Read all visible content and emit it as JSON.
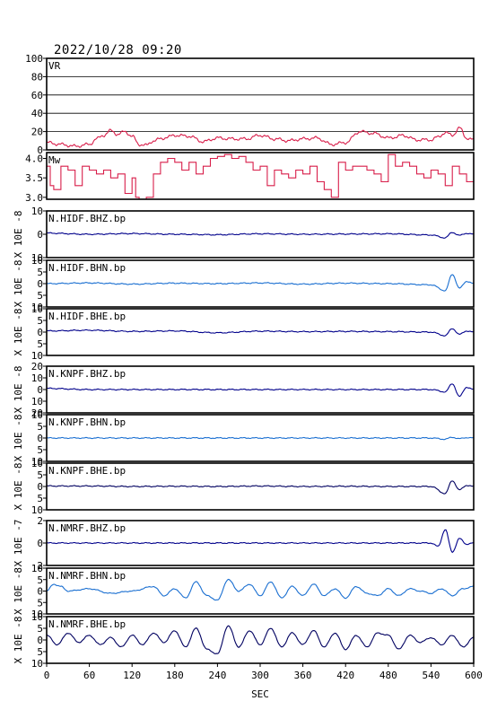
{
  "header": {
    "timestamp": "2022/10/28 09:20"
  },
  "colors": {
    "vr": "#d81e4a",
    "mw": "#d81e4a",
    "dark_blue": "#00008b",
    "mid_blue": "#1a6fd1",
    "navy": "#000060",
    "grid": "#000000"
  },
  "chart_data": {
    "type": "line",
    "xlabel": "SEC",
    "xlim": [
      0,
      600
    ],
    "xticks": [
      0,
      60,
      120,
      180,
      240,
      300,
      360,
      420,
      480,
      540,
      600
    ],
    "panels": [
      {
        "id": "vr",
        "label": "VR",
        "ylabel": "",
        "ylim": [
          0,
          100
        ],
        "yticks": [
          0,
          20,
          40,
          60,
          80,
          100
        ],
        "ytick_labels": [
          "0",
          "20",
          "40",
          "60",
          "80",
          "100"
        ],
        "grid": true,
        "color": "vr",
        "style": "line",
        "x": [
          0,
          20,
          40,
          60,
          70,
          80,
          90,
          100,
          110,
          120,
          130,
          140,
          150,
          160,
          170,
          180,
          200,
          220,
          240,
          260,
          280,
          300,
          320,
          340,
          360,
          380,
          400,
          420,
          440,
          460,
          480,
          490,
          500,
          520,
          540,
          550,
          560,
          570,
          580,
          590,
          600
        ],
        "values": [
          8,
          6,
          4,
          6,
          12,
          16,
          21,
          17,
          20,
          15,
          6,
          5,
          10,
          12,
          14,
          16,
          15,
          9,
          13,
          12,
          12,
          16,
          12,
          10,
          12,
          13,
          6,
          8,
          20,
          18,
          13,
          14,
          16,
          11,
          11,
          14,
          19,
          16,
          24,
          13,
          11
        ]
      },
      {
        "id": "mw",
        "label": "Mw",
        "ylabel": "",
        "ylim": [
          2.95,
          4.15
        ],
        "yticks": [
          3.0,
          3.5,
          4.0
        ],
        "ytick_labels": [
          "3.0",
          "3.5",
          "4.0"
        ],
        "grid": false,
        "color": "mw",
        "style": "step",
        "x": [
          0,
          5,
          10,
          20,
          30,
          40,
          50,
          60,
          70,
          80,
          90,
          100,
          110,
          120,
          125,
          130,
          140,
          150,
          160,
          170,
          180,
          190,
          200,
          210,
          220,
          230,
          240,
          250,
          260,
          270,
          280,
          290,
          300,
          310,
          320,
          330,
          340,
          350,
          360,
          370,
          380,
          390,
          400,
          410,
          420,
          430,
          440,
          450,
          460,
          470,
          480,
          490,
          500,
          510,
          520,
          530,
          540,
          550,
          560,
          570,
          580,
          590,
          600
        ],
        "values": [
          3.8,
          3.3,
          3.2,
          3.8,
          3.7,
          3.3,
          3.8,
          3.7,
          3.6,
          3.7,
          3.5,
          3.6,
          3.1,
          3.5,
          3.0,
          2.95,
          3.0,
          3.6,
          3.9,
          4.0,
          3.9,
          3.7,
          3.9,
          3.6,
          3.8,
          4.0,
          4.05,
          4.1,
          4.0,
          4.05,
          3.9,
          3.7,
          3.8,
          3.3,
          3.7,
          3.6,
          3.5,
          3.7,
          3.6,
          3.8,
          3.4,
          3.2,
          3.0,
          3.9,
          3.7,
          3.8,
          3.8,
          3.7,
          3.6,
          3.4,
          4.1,
          3.8,
          3.9,
          3.8,
          3.6,
          3.5,
          3.7,
          3.6,
          3.3,
          3.8,
          3.6,
          3.4,
          4.0
        ]
      },
      {
        "id": "hidf_bhz",
        "label": "N.HIDF.BHZ.bp",
        "ylabel": "X 10E -8",
        "ylim": [
          -10,
          10
        ],
        "yticks": [
          -10,
          0,
          10
        ],
        "ytick_labels": [
          "10",
          "0",
          "10"
        ],
        "grid": false,
        "color": "dark_blue",
        "style": "wave",
        "x": [
          0,
          60,
          120,
          180,
          240,
          300,
          360,
          420,
          480,
          540,
          560,
          570,
          580,
          590,
          600
        ],
        "values": [
          0.5,
          0,
          0.3,
          0,
          -0.2,
          0.2,
          0,
          0.1,
          0.2,
          -0.3,
          -1.5,
          0.8,
          -0.5,
          0.4,
          0
        ]
      },
      {
        "id": "hidf_bhn",
        "label": "N.HIDF.BHN.bp",
        "ylabel": "X 10E -8",
        "ylim": [
          -10,
          10
        ],
        "yticks": [
          -10,
          -5,
          0,
          5,
          10
        ],
        "ytick_labels": [
          "10",
          "5",
          "0",
          "5",
          "10"
        ],
        "grid": false,
        "color": "mid_blue",
        "style": "wave",
        "x": [
          0,
          60,
          120,
          180,
          240,
          300,
          360,
          420,
          480,
          540,
          560,
          570,
          580,
          590,
          600
        ],
        "values": [
          0,
          0.3,
          -0.2,
          0.2,
          0,
          0.3,
          -0.2,
          0.2,
          0,
          -0.5,
          -3,
          4,
          -2,
          1,
          0
        ]
      },
      {
        "id": "hidf_bhe",
        "label": "N.HIDF.BHE.bp",
        "ylabel": "X 10E -8",
        "ylim": [
          -10,
          10
        ],
        "yticks": [
          -10,
          -5,
          0,
          5,
          10
        ],
        "ytick_labels": [
          "10",
          "5",
          "0",
          "5",
          "10"
        ],
        "grid": false,
        "color": "dark_blue",
        "style": "wave",
        "x": [
          0,
          60,
          120,
          180,
          240,
          300,
          360,
          420,
          480,
          540,
          560,
          570,
          580,
          590,
          600
        ],
        "values": [
          0.5,
          0.8,
          0.3,
          0.5,
          -0.3,
          0.4,
          0.2,
          0.3,
          0.2,
          0,
          -1.5,
          1.5,
          -1,
          0.5,
          0
        ]
      },
      {
        "id": "knpf_bhz",
        "label": "N.KNPF.BHZ.bp",
        "ylabel": "X 10E -8",
        "ylim": [
          -20,
          20
        ],
        "yticks": [
          -20,
          -10,
          0,
          10,
          20
        ],
        "ytick_labels": [
          "20",
          "10",
          "0",
          "10",
          "20"
        ],
        "grid": false,
        "color": "dark_blue",
        "style": "wave",
        "x": [
          0,
          60,
          120,
          180,
          240,
          300,
          360,
          420,
          480,
          540,
          560,
          570,
          580,
          590,
          600
        ],
        "values": [
          1,
          0,
          0,
          0,
          0,
          0,
          0,
          0,
          0,
          0,
          -2,
          5,
          -6,
          2,
          0
        ]
      },
      {
        "id": "knpf_bhn",
        "label": "N.KNPF.BHN.bp",
        "ylabel": "X 10E -8",
        "ylim": [
          -10,
          10
        ],
        "yticks": [
          -10,
          -5,
          0,
          5,
          10
        ],
        "ytick_labels": [
          "10",
          "5",
          "0",
          "5",
          "10"
        ],
        "grid": false,
        "color": "mid_blue",
        "style": "wave",
        "x": [
          0,
          60,
          120,
          180,
          240,
          300,
          360,
          420,
          480,
          540,
          560,
          570,
          580,
          590,
          600
        ],
        "values": [
          0,
          0,
          0,
          0,
          0,
          0,
          0,
          0,
          0,
          0,
          -0.5,
          0.3,
          -0.3,
          0.2,
          0
        ]
      },
      {
        "id": "knpf_bhe",
        "label": "N.KNPF.BHE.bp",
        "ylabel": "X 10E -8",
        "ylim": [
          -10,
          10
        ],
        "yticks": [
          -10,
          -5,
          0,
          5,
          10
        ],
        "ytick_labels": [
          "10",
          "5",
          "0",
          "5",
          "10"
        ],
        "grid": false,
        "color": "navy",
        "style": "wave",
        "x": [
          0,
          60,
          120,
          180,
          240,
          300,
          360,
          420,
          480,
          540,
          560,
          570,
          580,
          590,
          600
        ],
        "values": [
          0.2,
          0.2,
          0,
          0.1,
          0,
          0.2,
          0,
          0.1,
          0,
          0,
          -3,
          2.5,
          -1.5,
          0.5,
          0
        ]
      },
      {
        "id": "nmrf_bhz",
        "label": "N.NMRF.BHZ.bp",
        "ylabel": "X 10E -7",
        "ylim": [
          -2,
          2
        ],
        "yticks": [
          -2,
          0,
          2
        ],
        "ytick_labels": [
          "2",
          "0",
          "2"
        ],
        "grid": false,
        "color": "dark_blue",
        "style": "wave",
        "x": [
          0,
          60,
          120,
          180,
          240,
          300,
          360,
          420,
          480,
          540,
          550,
          560,
          570,
          580,
          590,
          600
        ],
        "values": [
          0,
          0,
          0,
          0,
          0,
          0,
          0,
          0,
          0,
          0,
          -0.3,
          1.2,
          -0.8,
          0.4,
          -0.1,
          0
        ]
      },
      {
        "id": "nmrf_bhn",
        "label": "N.NMRF.BHN.bp",
        "ylabel": "X 10E -8",
        "ylim": [
          -10,
          10
        ],
        "yticks": [
          -10,
          -5,
          0,
          5,
          10
        ],
        "ytick_labels": [
          "10",
          "5",
          "0",
          "5",
          "10"
        ],
        "grid": false,
        "color": "mid_blue",
        "style": "osc",
        "x": [
          0,
          10,
          20,
          30,
          60,
          90,
          120,
          150,
          165,
          180,
          195,
          210,
          225,
          240,
          255,
          270,
          285,
          300,
          315,
          330,
          345,
          360,
          375,
          390,
          405,
          420,
          435,
          450,
          465,
          480,
          495,
          510,
          525,
          540,
          555,
          570,
          585,
          600
        ],
        "values": [
          0,
          3,
          2,
          0,
          1,
          -1,
          0,
          2,
          -2,
          1,
          -3,
          4,
          -2,
          -4,
          5,
          0,
          3,
          -2,
          4,
          -3,
          2,
          -2,
          3,
          -2,
          1,
          -3,
          2,
          -1,
          -2,
          1,
          -2,
          1,
          0,
          -1,
          1,
          -2,
          1,
          2
        ]
      },
      {
        "id": "nmrf_bhe",
        "label": "N.NMRF.BHE.bp",
        "ylabel": "X 10E -8",
        "ylim": [
          -10,
          10
        ],
        "yticks": [
          -10,
          -5,
          0,
          5,
          10
        ],
        "ytick_labels": [
          "10",
          "5",
          "0",
          "5",
          "10"
        ],
        "grid": false,
        "color": "navy",
        "style": "osc",
        "x": [
          0,
          15,
          30,
          45,
          60,
          75,
          90,
          105,
          120,
          135,
          150,
          165,
          180,
          195,
          210,
          225,
          240,
          255,
          270,
          285,
          300,
          315,
          330,
          345,
          360,
          375,
          390,
          405,
          420,
          435,
          450,
          465,
          480,
          495,
          510,
          525,
          540,
          555,
          570,
          585,
          600
        ],
        "values": [
          2,
          -2,
          3,
          -1,
          2,
          -2,
          1,
          -3,
          2,
          -2,
          3,
          -1,
          4,
          -3,
          5,
          -4,
          -6,
          6,
          -3,
          4,
          -2,
          5,
          -3,
          3,
          -2,
          4,
          -3,
          3,
          -4,
          2,
          -3,
          3,
          2,
          -4,
          2,
          -1,
          1,
          -2,
          2,
          -3,
          1
        ]
      }
    ]
  }
}
